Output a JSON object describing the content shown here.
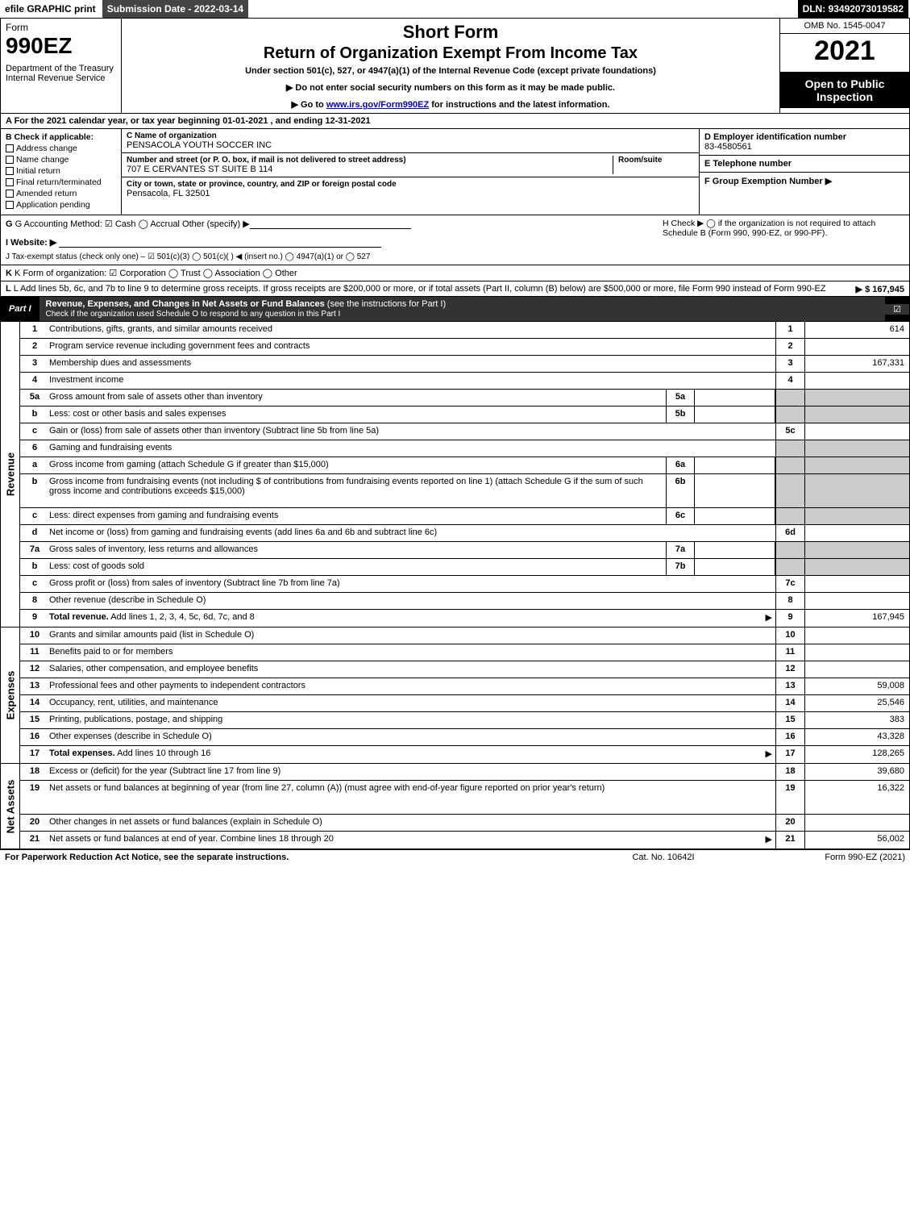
{
  "topbar": {
    "efile": "efile GRAPHIC print",
    "subdate": "Submission Date - 2022-03-14",
    "dln": "DLN: 93492073019582"
  },
  "header": {
    "form_word": "Form",
    "form_num": "990EZ",
    "dept": "Department of the Treasury\nInternal Revenue Service",
    "short": "Short Form",
    "title": "Return of Organization Exempt From Income Tax",
    "sub": "Under section 501(c), 527, or 4947(a)(1) of the Internal Revenue Code (except private foundations)",
    "note1": "▶ Do not enter social security numbers on this form as it may be made public.",
    "note2_pre": "▶ Go to ",
    "note2_link": "www.irs.gov/Form990EZ",
    "note2_post": " for instructions and the latest information.",
    "omb": "OMB No. 1545-0047",
    "year": "2021",
    "open": "Open to Public Inspection"
  },
  "row_a": "A  For the 2021 calendar year, or tax year beginning 01-01-2021 , and ending 12-31-2021",
  "col_b": {
    "label": "B  Check if applicable:",
    "items": [
      "Address change",
      "Name change",
      "Initial return",
      "Final return/terminated",
      "Amended return",
      "Application pending"
    ]
  },
  "col_c": {
    "name_lbl": "C Name of organization",
    "name": "PENSACOLA YOUTH SOCCER INC",
    "addr_lbl": "Number and street (or P. O. box, if mail is not delivered to street address)",
    "room_lbl": "Room/suite",
    "addr": "707 E CERVANTES ST SUITE B 114",
    "city_lbl": "City or town, state or province, country, and ZIP or foreign postal code",
    "city": "Pensacola, FL  32501"
  },
  "col_def": {
    "d_lbl": "D Employer identification number",
    "d_val": "83-4580561",
    "e_lbl": "E Telephone number",
    "e_val": "",
    "f_lbl": "F Group Exemption Number  ▶",
    "f_val": ""
  },
  "block_ghi": {
    "g": "G Accounting Method:   ☑ Cash  ◯ Accrual  Other (specify) ▶",
    "i": "I Website: ▶",
    "j": "J Tax-exempt status (check only one) – ☑ 501(c)(3) ◯ 501(c)(  ) ◀ (insert no.) ◯ 4947(a)(1) or ◯ 527",
    "h": "H  Check ▶  ◯  if the organization is not required to attach Schedule B (Form 990, 990-EZ, or 990-PF)."
  },
  "row_k": "K Form of organization:  ☑ Corporation  ◯ Trust  ◯ Association  ◯ Other",
  "row_l": {
    "text": "L Add lines 5b, 6c, and 7b to line 9 to determine gross receipts. If gross receipts are $200,000 or more, or if total assets (Part II, column (B) below) are $500,000 or more, file Form 990 instead of Form 990-EZ",
    "amt": "▶ $ 167,945"
  },
  "part1": {
    "tab": "Part I",
    "title_b": "Revenue, Expenses, and Changes in Net Assets or Fund Balances",
    "title_rest": " (see the instructions for Part I)",
    "sub": "Check if the organization used Schedule O to respond to any question in this Part I"
  },
  "sections": [
    {
      "side": "Revenue",
      "lines": [
        {
          "n": "1",
          "d": "Contributions, gifts, grants, and similar amounts received",
          "rn": "1",
          "rv": "614"
        },
        {
          "n": "2",
          "d": "Program service revenue including government fees and contracts",
          "rn": "2",
          "rv": ""
        },
        {
          "n": "3",
          "d": "Membership dues and assessments",
          "rn": "3",
          "rv": "167,331"
        },
        {
          "n": "4",
          "d": "Investment income",
          "rn": "4",
          "rv": ""
        },
        {
          "n": "5a",
          "d": "Gross amount from sale of assets other than inventory",
          "mn": "5a",
          "mv": "",
          "shaded": true
        },
        {
          "n": "b",
          "d": "Less: cost or other basis and sales expenses",
          "mn": "5b",
          "mv": "",
          "shaded": true
        },
        {
          "n": "c",
          "d": "Gain or (loss) from sale of assets other than inventory (Subtract line 5b from line 5a)",
          "rn": "5c",
          "rv": ""
        },
        {
          "n": "6",
          "d": "Gaming and fundraising events",
          "shaded": true,
          "nor": true
        },
        {
          "n": "a",
          "d": "Gross income from gaming (attach Schedule G if greater than $15,000)",
          "mn": "6a",
          "mv": "",
          "shaded": true
        },
        {
          "n": "b",
          "d": "Gross income from fundraising events (not including $                  of contributions from fundraising events reported on line 1) (attach Schedule G if the sum of such gross income and contributions exceeds $15,000)",
          "mn": "6b",
          "mv": "",
          "shaded": true,
          "tall": true
        },
        {
          "n": "c",
          "d": "Less: direct expenses from gaming and fundraising events",
          "mn": "6c",
          "mv": "",
          "shaded": true
        },
        {
          "n": "d",
          "d": "Net income or (loss) from gaming and fundraising events (add lines 6a and 6b and subtract line 6c)",
          "rn": "6d",
          "rv": ""
        },
        {
          "n": "7a",
          "d": "Gross sales of inventory, less returns and allowances",
          "mn": "7a",
          "mv": "",
          "shaded": true
        },
        {
          "n": "b",
          "d": "Less: cost of goods sold",
          "mn": "7b",
          "mv": "",
          "shaded": true
        },
        {
          "n": "c",
          "d": "Gross profit or (loss) from sales of inventory (Subtract line 7b from line 7a)",
          "rn": "7c",
          "rv": ""
        },
        {
          "n": "8",
          "d": "Other revenue (describe in Schedule O)",
          "rn": "8",
          "rv": ""
        },
        {
          "n": "9",
          "d": "Total revenue. Add lines 1, 2, 3, 4, 5c, 6d, 7c, and 8",
          "rn": "9",
          "rv": "167,945",
          "bold": true,
          "arrow": true
        }
      ]
    },
    {
      "side": "Expenses",
      "lines": [
        {
          "n": "10",
          "d": "Grants and similar amounts paid (list in Schedule O)",
          "rn": "10",
          "rv": ""
        },
        {
          "n": "11",
          "d": "Benefits paid to or for members",
          "rn": "11",
          "rv": ""
        },
        {
          "n": "12",
          "d": "Salaries, other compensation, and employee benefits",
          "rn": "12",
          "rv": ""
        },
        {
          "n": "13",
          "d": "Professional fees and other payments to independent contractors",
          "rn": "13",
          "rv": "59,008"
        },
        {
          "n": "14",
          "d": "Occupancy, rent, utilities, and maintenance",
          "rn": "14",
          "rv": "25,546"
        },
        {
          "n": "15",
          "d": "Printing, publications, postage, and shipping",
          "rn": "15",
          "rv": "383"
        },
        {
          "n": "16",
          "d": "Other expenses (describe in Schedule O)",
          "rn": "16",
          "rv": "43,328"
        },
        {
          "n": "17",
          "d": "Total expenses. Add lines 10 through 16",
          "rn": "17",
          "rv": "128,265",
          "bold": true,
          "arrow": true
        }
      ]
    },
    {
      "side": "Net Assets",
      "lines": [
        {
          "n": "18",
          "d": "Excess or (deficit) for the year (Subtract line 17 from line 9)",
          "rn": "18",
          "rv": "39,680"
        },
        {
          "n": "19",
          "d": "Net assets or fund balances at beginning of year (from line 27, column (A)) (must agree with end-of-year figure reported on prior year's return)",
          "rn": "19",
          "rv": "16,322",
          "tall": true
        },
        {
          "n": "20",
          "d": "Other changes in net assets or fund balances (explain in Schedule O)",
          "rn": "20",
          "rv": ""
        },
        {
          "n": "21",
          "d": "Net assets or fund balances at end of year. Combine lines 18 through 20",
          "rn": "21",
          "rv": "56,002",
          "arrow": true
        }
      ]
    }
  ],
  "footer": {
    "left": "For Paperwork Reduction Act Notice, see the separate instructions.",
    "center": "Cat. No. 10642I",
    "right": "Form 990-EZ (2021)"
  },
  "colors": {
    "black": "#000000",
    "white": "#ffffff",
    "shaded": "#cccccc",
    "darkgray": "#333333",
    "link": "#0000cc"
  }
}
